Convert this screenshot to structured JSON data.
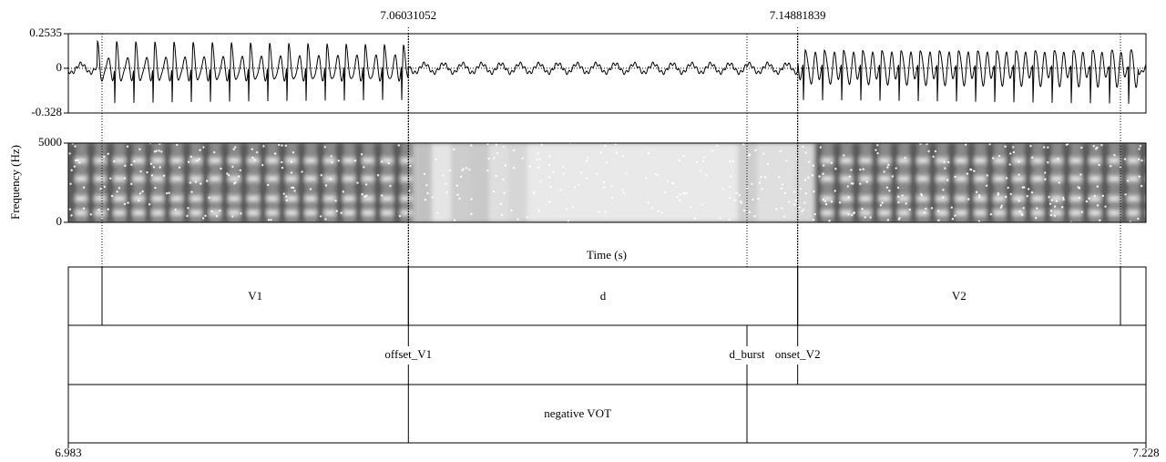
{
  "time_axis": {
    "xlim": [
      6.983,
      7.228
    ],
    "xlabel": "Time (s)",
    "cursors": [
      7.06031052,
      7.14881839
    ]
  },
  "waveform": {
    "ylim": [
      -0.328,
      0.2535
    ],
    "yticks": [
      -0.328,
      0,
      0.2535
    ]
  },
  "spectrogram": {
    "ylabel": "Frequency (Hz)",
    "ylim": [
      0,
      5000
    ],
    "yticks": [
      0,
      5000
    ]
  },
  "tiers": [
    {
      "intervals": [
        {
          "start": 6.99066,
          "end": 7.06031052,
          "text": "V1"
        },
        {
          "start": 7.06031052,
          "end": 7.14881839,
          "text": "d"
        },
        {
          "start": 7.14881839,
          "end": 7.2222,
          "text": "V2"
        }
      ]
    },
    {
      "points": [
        {
          "time": 7.06031052,
          "text": "offset_V1"
        },
        {
          "time": 7.13729,
          "text": "d_burst"
        },
        {
          "time": 7.14881839,
          "text": "onset_V2"
        }
      ]
    },
    {
      "intervals": [
        {
          "start": 7.06031052,
          "end": 7.13729,
          "text": "negative VOT"
        }
      ]
    }
  ]
}
